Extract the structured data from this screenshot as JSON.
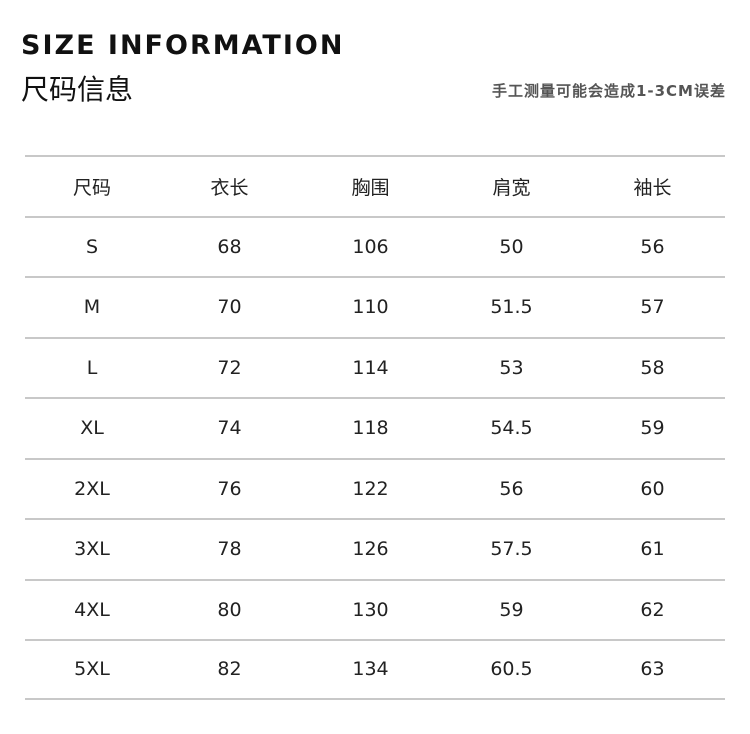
{
  "header": {
    "title_en": "SIZE INFORMATION",
    "title_cn": "尺码信息",
    "note": "手工测量可能会造成1-3CM误差"
  },
  "table": {
    "columns": [
      "尺码",
      "衣长",
      "胸围",
      "肩宽",
      "袖长"
    ],
    "rows": [
      [
        "S",
        "68",
        "106",
        "50",
        "56"
      ],
      [
        "M",
        "70",
        "110",
        "51.5",
        "57"
      ],
      [
        "L",
        "72",
        "114",
        "53",
        "58"
      ],
      [
        "XL",
        "74",
        "118",
        "54.5",
        "59"
      ],
      [
        "2XL",
        "76",
        "122",
        "56",
        "60"
      ],
      [
        "3XL",
        "78",
        "126",
        "57.5",
        "61"
      ],
      [
        "4XL",
        "80",
        "130",
        "59",
        "62"
      ],
      [
        "5XL",
        "82",
        "134",
        "60.5",
        "63"
      ]
    ]
  }
}
